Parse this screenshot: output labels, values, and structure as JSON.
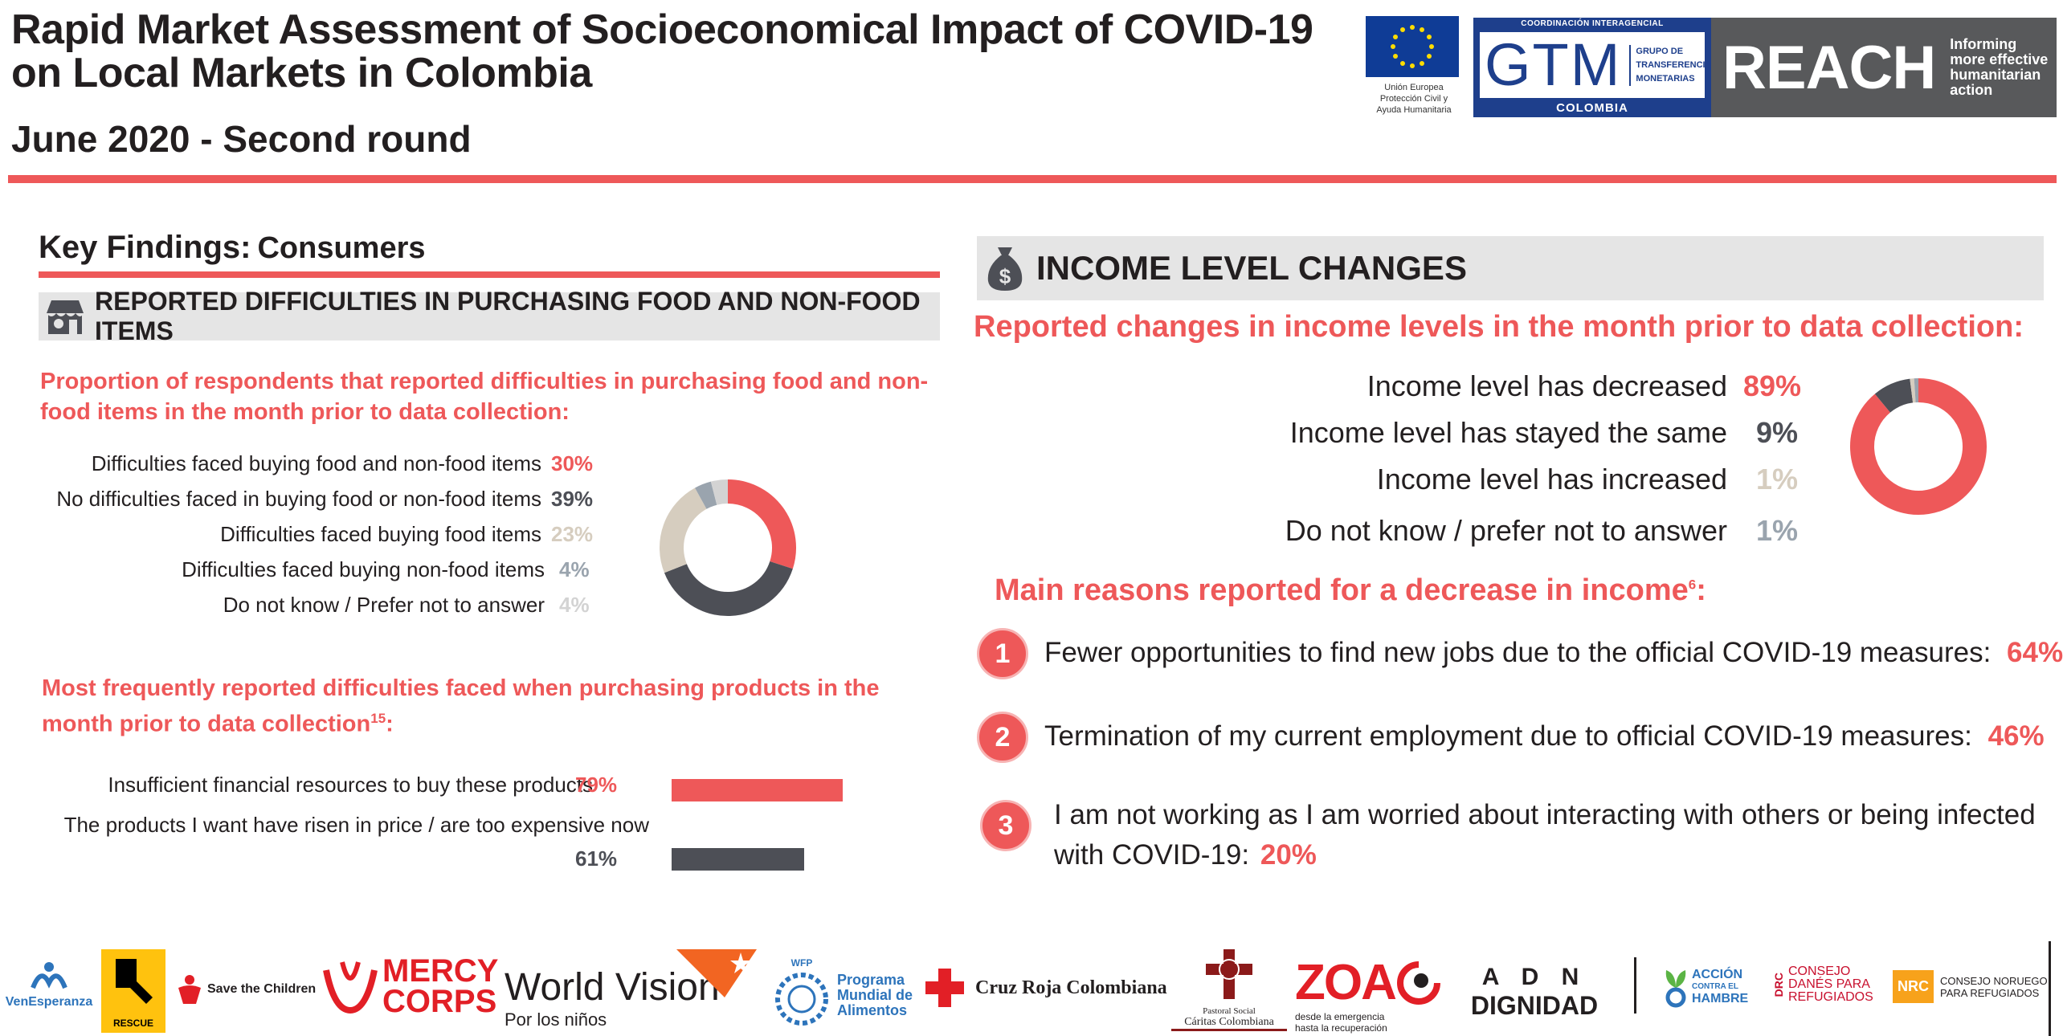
{
  "header": {
    "title_line1": "Rapid Market Assessment of Socioeconomical Impact of COVID-19",
    "title_line2": "on Local Markets in Colombia",
    "subtitle": "June 2020 - Second round"
  },
  "logos": {
    "eu_text": "Unión Europea\nProtección Civil y\nAyuda Humanitaria",
    "gtm_top": "COORDINACIÓN INTERAGENCIAL",
    "gtm_big": "GTM",
    "gtm_small": "GRUPO DE\nTRANSFERENCIAS\nMONETARIAS",
    "gtm_bottom": "COLOMBIA",
    "reach_word": "REACH",
    "reach_tag": "Informing\nmore effective\nhumanitarian action"
  },
  "key_findings": {
    "label": "Key Findings:",
    "sublabel": "Consumers"
  },
  "difficulties_section": {
    "title": "REPORTED DIFFICULTIES IN PURCHASING FOOD AND NON-FOOD ITEMS",
    "proportion_heading": "Proportion of respondents that reported difficulties in purchasing food and non-food items in the month prior to data collection:",
    "rows": [
      {
        "label": "Difficulties faced buying food and non-food items",
        "value": "30%",
        "color": "#ee5859",
        "num": 30
      },
      {
        "label": "No difficulties faced in buying food or non-food items",
        "value": "39%",
        "color": "#4d4f56",
        "num": 39
      },
      {
        "label": "Difficulties faced buying food items",
        "value": "23%",
        "color": "#d6cdbf",
        "num": 23
      },
      {
        "label": "Difficulties faced buying non-food items",
        "value": "4%",
        "color": "#9aa4ae",
        "num": 4
      },
      {
        "label": "Do not know / Prefer not to answer",
        "value": "4%",
        "color": "#d3d3d3",
        "num": 4
      }
    ],
    "frequent_heading": "Most frequently reported difficulties faced when purchasing products in the month prior to data collection",
    "frequent_footnote": "15",
    "frequent_suffix": ":",
    "bars": [
      {
        "label": "Insufficient financial resources to buy these products",
        "value": "79%",
        "num": 79,
        "color": "#ee5859"
      },
      {
        "label": "The products I want have risen in price / are too expensive now",
        "value": "61%",
        "num": 61,
        "color": "#4d4f56"
      }
    ]
  },
  "income_section": {
    "title": "INCOME LEVEL CHANGES",
    "heading": "Reported changes in income levels in the month prior to data collection:",
    "rows": [
      {
        "label": "Income level has decreased",
        "value": "89%",
        "color": "#ee5859",
        "num": 89
      },
      {
        "label": "Income level has stayed the same",
        "value": "9%",
        "color": "#4d4f56",
        "num": 9
      },
      {
        "label": "Income level has increased",
        "value": "1%",
        "color": "#d6cdbf",
        "num": 1
      },
      {
        "label": "Do not know / prefer not to answer",
        "value": "1%",
        "color": "#9aa4ae",
        "num": 1
      }
    ],
    "reasons_heading": "Main reasons reported for a decrease in income",
    "reasons_footnote": "6",
    "reasons_suffix": ":",
    "reasons": [
      {
        "num": "1",
        "text": "Fewer opportunities to find new jobs due to the official COVID-19 measures:",
        "value": "64%"
      },
      {
        "num": "2",
        "text": "Termination of my current employment due to official COVID-19 measures:",
        "value": "46%"
      },
      {
        "num": "3",
        "text": "I am not working as I am worried about interacting with others or being infected with COVID-19:",
        "value": "20%"
      }
    ]
  },
  "partners": {
    "venesperanza": "VenEsperanza",
    "irc": "RESCUE",
    "save": "Save the Children",
    "mercy1": "MERCY",
    "mercy2": "CORPS",
    "worldvision": "World Vision",
    "worldvision_sub": "Por los niños",
    "wfp_line1": "Programa",
    "wfp_line2": "Mundial de",
    "wfp_line3": "Alimentos",
    "wfp_tag": "WFP",
    "cruzroja": "Cruz Roja Colombiana",
    "caritas_line1": "Pastoral Social",
    "caritas_line2": "Cáritas Colombiana",
    "zoa": "ZOA",
    "zoa_sub1": "desde la emergencia",
    "zoa_sub2": "hasta la recuperación",
    "adn_letters": "A  D  N",
    "adn_word": "DIGNIDAD",
    "accion1": "ACCIÓN",
    "accion2": "CONTRA EL",
    "accion3": "HAMBRE",
    "drc1": "CONSEJO",
    "drc2": "DANÉS PARA",
    "drc3": "REFUGIADOS",
    "drc_tag": "DRC",
    "nrc_tag": "NRC",
    "nrc1": "CONSEJO NORUEGO",
    "nrc2": "PARA REFUGIADOS"
  }
}
